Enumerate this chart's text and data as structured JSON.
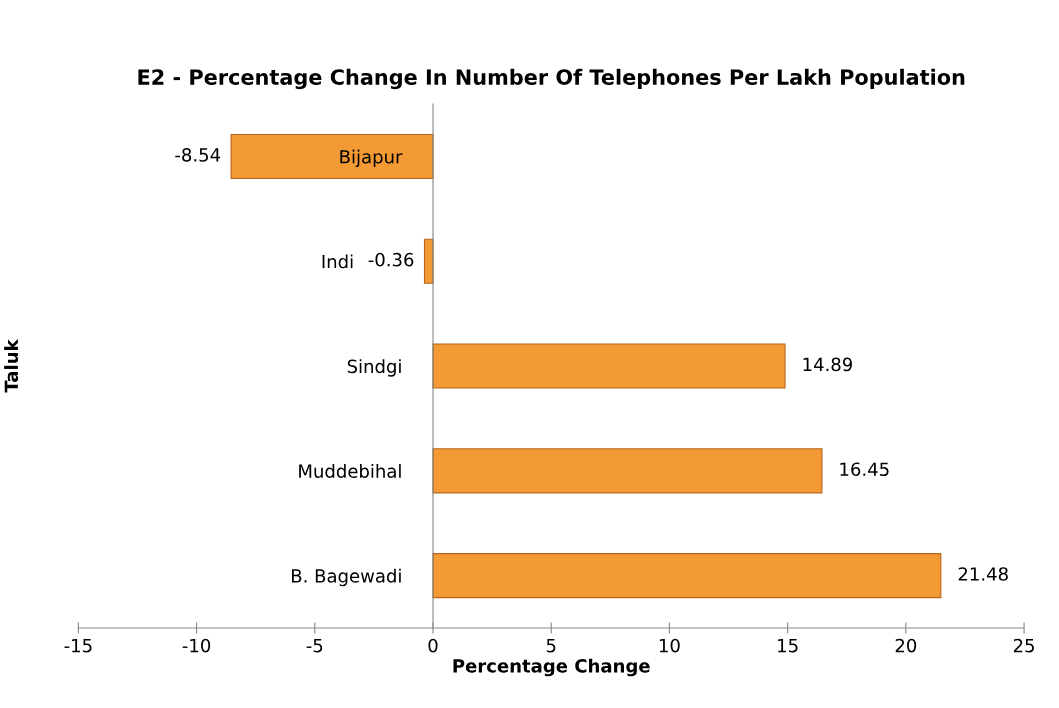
{
  "chart_data": {
    "type": "bar",
    "orientation": "horizontal",
    "title": "E2 - Percentage Change In Number Of Telephones Per Lakh Population",
    "xlabel": "Percentage Change",
    "ylabel": "Taluk",
    "categories": [
      "Bijapur",
      "Indi",
      "Sindgi",
      "Muddebihal",
      "B. Bagewadi"
    ],
    "values": [
      -8.54,
      -0.36,
      14.89,
      16.45,
      21.48
    ],
    "color": "#f39a35",
    "xlim": [
      -15,
      25
    ],
    "xticks": [
      -15,
      -10,
      -5,
      0,
      5,
      10,
      15,
      20,
      25
    ],
    "data_labels": true,
    "grid": false
  }
}
